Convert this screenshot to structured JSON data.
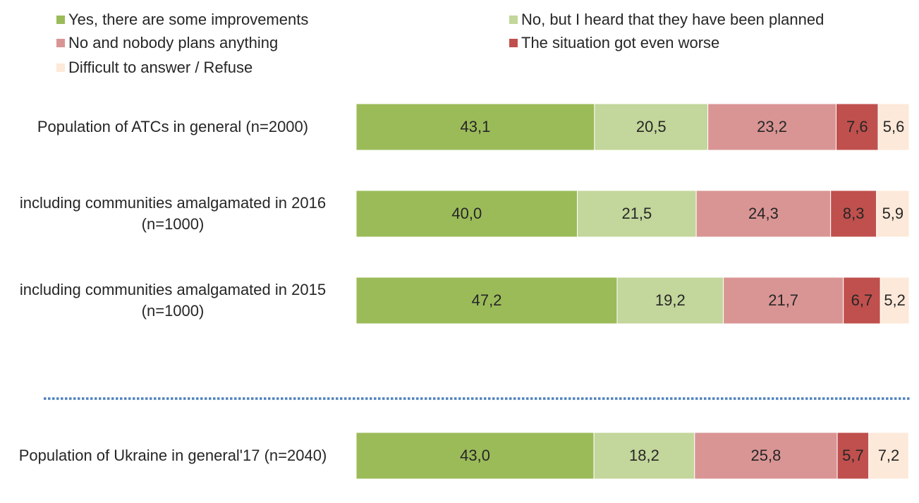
{
  "chart_data": {
    "type": "stacked-bar-horizontal",
    "categories": [
      "Population of ATCs in general (n=2000)",
      "including communities amalgamated in 2016 (n=1000)",
      "including communities amalgamated in 2015 (n=1000)",
      "Population of Ukraine in general'17 (n=2040)"
    ],
    "series": [
      {
        "name": "Yes, there are some improvements",
        "color": "#9bbb59",
        "values": [
          43.1,
          40.0,
          47.2,
          43.0
        ],
        "value_labels": [
          "43,1",
          "40,0",
          "47,2",
          "43,0"
        ]
      },
      {
        "name": "No, but I heard that they have been planned",
        "color": "#c3d69b",
        "values": [
          20.5,
          21.5,
          19.2,
          18.2
        ],
        "value_labels": [
          "20,5",
          "21,5",
          "19,2",
          "18,2"
        ]
      },
      {
        "name": "No and nobody plans anything",
        "color": "#d99594",
        "values": [
          23.2,
          24.3,
          21.7,
          25.8
        ],
        "value_labels": [
          "23,2",
          "24,3",
          "21,7",
          "25,8"
        ]
      },
      {
        "name": "The situation got even worse",
        "color": "#c0504d",
        "values": [
          7.6,
          8.3,
          6.7,
          5.7
        ],
        "value_labels": [
          "7,6",
          "8,3",
          "6,7",
          "5,7"
        ]
      },
      {
        "name": "Difficult to answer / Refuse",
        "color": "#fde9d9",
        "values": [
          5.6,
          5.9,
          5.2,
          7.2
        ],
        "value_labels": [
          "5,6",
          "5,9",
          "5,2",
          "7,2"
        ]
      }
    ]
  }
}
